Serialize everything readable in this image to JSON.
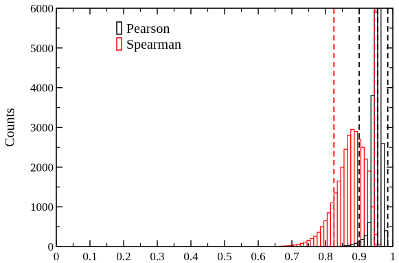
{
  "chart_data": {
    "type": "bar",
    "subtype": "histogram",
    "title": "",
    "xlabel": "",
    "ylabel": "Counts",
    "xlim": [
      0,
      1
    ],
    "ylim": [
      0,
      6000
    ],
    "xticks": [
      "0",
      "0.1",
      "0.2",
      "0.3",
      "0.4",
      "0.5",
      "0.6",
      "0.7",
      "0.8",
      "0.9",
      "1"
    ],
    "yticks": [
      "0",
      "1000",
      "2000",
      "3000",
      "4000",
      "5000",
      "6000"
    ],
    "grid": false,
    "legend_position": "top-left",
    "bin_width": 0.01,
    "series": [
      {
        "name": "Pearson",
        "color": "#000000",
        "bins": [
          {
            "x": 0.85,
            "count": 10
          },
          {
            "x": 0.86,
            "count": 20
          },
          {
            "x": 0.87,
            "count": 30
          },
          {
            "x": 0.88,
            "count": 50
          },
          {
            "x": 0.89,
            "count": 80
          },
          {
            "x": 0.9,
            "count": 120
          },
          {
            "x": 0.91,
            "count": 180
          },
          {
            "x": 0.92,
            "count": 280
          },
          {
            "x": 0.93,
            "count": 600
          },
          {
            "x": 0.94,
            "count": 3800
          },
          {
            "x": 0.95,
            "count": 5900
          },
          {
            "x": 0.96,
            "count": 6000
          },
          {
            "x": 0.97,
            "count": 2600
          },
          {
            "x": 0.98,
            "count": 400
          }
        ],
        "vlines": [
          0.9,
          0.955,
          0.985
        ]
      },
      {
        "name": "Spearman",
        "color": "#ff0000",
        "bins": [
          {
            "x": 0.67,
            "count": 10
          },
          {
            "x": 0.68,
            "count": 15
          },
          {
            "x": 0.69,
            "count": 20
          },
          {
            "x": 0.7,
            "count": 30
          },
          {
            "x": 0.71,
            "count": 40
          },
          {
            "x": 0.72,
            "count": 60
          },
          {
            "x": 0.73,
            "count": 80
          },
          {
            "x": 0.74,
            "count": 110
          },
          {
            "x": 0.75,
            "count": 150
          },
          {
            "x": 0.76,
            "count": 200
          },
          {
            "x": 0.77,
            "count": 260
          },
          {
            "x": 0.78,
            "count": 360
          },
          {
            "x": 0.79,
            "count": 500
          },
          {
            "x": 0.8,
            "count": 650
          },
          {
            "x": 0.81,
            "count": 850
          },
          {
            "x": 0.82,
            "count": 1100
          },
          {
            "x": 0.83,
            "count": 1350
          },
          {
            "x": 0.84,
            "count": 1650
          },
          {
            "x": 0.85,
            "count": 2000
          },
          {
            "x": 0.86,
            "count": 2450
          },
          {
            "x": 0.87,
            "count": 2800
          },
          {
            "x": 0.88,
            "count": 2950
          },
          {
            "x": 0.89,
            "count": 2900
          },
          {
            "x": 0.9,
            "count": 2700
          },
          {
            "x": 0.91,
            "count": 2500
          },
          {
            "x": 0.92,
            "count": 2200
          },
          {
            "x": 0.93,
            "count": 1900
          },
          {
            "x": 0.94,
            "count": 1000
          },
          {
            "x": 0.95,
            "count": 300
          },
          {
            "x": 0.96,
            "count": 50
          }
        ],
        "vlines": [
          0.825,
          0.945
        ]
      }
    ]
  }
}
